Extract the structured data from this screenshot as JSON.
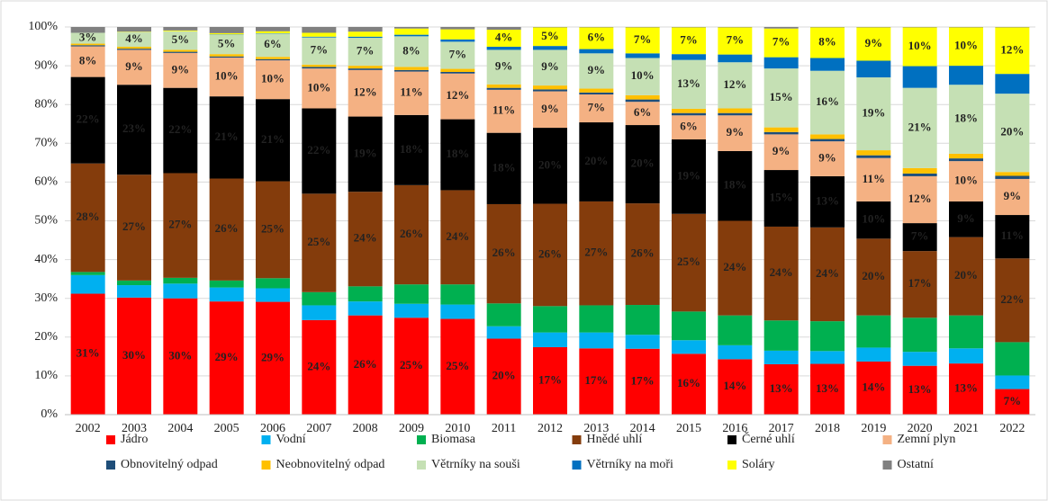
{
  "chart_data": {
    "type": "stacked_bar_100",
    "categories": [
      "2002",
      "2003",
      "2004",
      "2005",
      "2006",
      "2007",
      "2008",
      "2009",
      "2010",
      "2011",
      "2012",
      "2013",
      "2014",
      "2015",
      "2016",
      "2017",
      "2018",
      "2019",
      "2020",
      "2021",
      "2022"
    ],
    "ylim": [
      0,
      100
    ],
    "yticks": [
      {
        "value": 0,
        "label": "0%"
      },
      {
        "value": 10,
        "label": "10%"
      },
      {
        "value": 20,
        "label": "20%"
      },
      {
        "value": 30,
        "label": "30%"
      },
      {
        "value": 40,
        "label": "40%"
      },
      {
        "value": 50,
        "label": "50%"
      },
      {
        "value": 60,
        "label": "60%"
      },
      {
        "value": 70,
        "label": "70%"
      },
      {
        "value": 80,
        "label": "80%"
      },
      {
        "value": 90,
        "label": "90%"
      },
      {
        "value": 100,
        "label": "100%"
      }
    ],
    "grid": true,
    "legend": "bottom",
    "series": [
      {
        "name": "Jádro",
        "color": "#ff0000",
        "values": [
          31.2,
          30.2,
          30.0,
          29.2,
          29.1,
          24.4,
          25.6,
          25.0,
          24.7,
          19.6,
          17.4,
          17.1,
          17.0,
          15.7,
          14.3,
          13.0,
          13.1,
          13.7,
          12.6,
          13.2,
          6.6
        ],
        "value_labels": [
          "31%",
          "30%",
          "30%",
          "29%",
          "29%",
          "24%",
          "26%",
          "25%",
          "25%",
          "20%",
          "17%",
          "17%",
          "17%",
          "16%",
          "14%",
          "13%",
          "13%",
          "14%",
          "13%",
          "13%",
          "7%"
        ]
      },
      {
        "name": "Vodní",
        "color": "#00b0f0",
        "values": [
          4.8,
          3.2,
          3.8,
          3.6,
          3.5,
          3.8,
          3.6,
          3.6,
          3.7,
          3.2,
          3.8,
          4.1,
          3.6,
          3.5,
          3.6,
          3.5,
          3.3,
          3.6,
          3.6,
          3.9,
          3.5
        ]
      },
      {
        "name": "Biomasa",
        "color": "#00b050",
        "values": [
          0.8,
          1.2,
          1.5,
          1.8,
          2.6,
          3.4,
          3.9,
          5.0,
          5.2,
          5.9,
          6.8,
          7.0,
          7.7,
          7.4,
          7.7,
          7.8,
          7.7,
          8.3,
          8.8,
          8.5,
          8.6
        ]
      },
      {
        "name": "Hnědé uhlí",
        "color": "#843c0c",
        "values": [
          28.0,
          27.3,
          27.0,
          26.3,
          25.0,
          25.4,
          24.4,
          25.6,
          24.3,
          25.6,
          26.4,
          26.8,
          26.2,
          25.2,
          24.4,
          24.2,
          24.2,
          19.8,
          17.2,
          20.2,
          21.6
        ],
        "value_labels": [
          "28%",
          "27%",
          "27%",
          "26%",
          "25%",
          "25%",
          "24%",
          "26%",
          "24%",
          "26%",
          "26%",
          "27%",
          "26%",
          "25%",
          "24%",
          "24%",
          "24%",
          "20%",
          "17%",
          "20%",
          "22%"
        ]
      },
      {
        "name": "Černé uhlí",
        "color": "#000000",
        "values": [
          22.3,
          23.2,
          22.0,
          21.2,
          21.2,
          22.0,
          19.4,
          18.1,
          18.3,
          18.4,
          19.6,
          20.4,
          20.2,
          19.2,
          18.0,
          14.6,
          13.2,
          9.6,
          7.2,
          9.2,
          11.2
        ],
        "value_labels": [
          "22%",
          "23%",
          "22%",
          "21%",
          "21%",
          "22%",
          "19%",
          "18%",
          "18%",
          "18%",
          "20%",
          "20%",
          "20%",
          "19%",
          "18%",
          "15%",
          "13%",
          "10%",
          "7%",
          "9%",
          "11%"
        ]
      },
      {
        "name": "Zemní plyn",
        "color": "#f4b183",
        "values": [
          7.9,
          9.0,
          9.0,
          10.0,
          10.0,
          10.3,
          12.0,
          11.2,
          11.8,
          11.1,
          9.4,
          7.2,
          6.0,
          6.2,
          9.2,
          9.2,
          9.0,
          11.2,
          12.1,
          10.4,
          9.3
        ],
        "value_labels": [
          "8%",
          "9%",
          "9%",
          "10%",
          "10%",
          "10%",
          "12%",
          "11%",
          "12%",
          "11%",
          "9%",
          "7%",
          "6%",
          "6%",
          "9%",
          "9%",
          "9%",
          "11%",
          "12%",
          "10%",
          "9%"
        ]
      },
      {
        "name": "Obnovitelný odpad",
        "color": "#1f4e79",
        "values": [
          0.3,
          0.3,
          0.3,
          0.3,
          0.3,
          0.4,
          0.4,
          0.4,
          0.4,
          0.5,
          0.5,
          0.5,
          0.6,
          0.6,
          0.6,
          0.6,
          0.6,
          0.7,
          0.7,
          0.7,
          0.8
        ]
      },
      {
        "name": "Neobnovitelný odpad",
        "color": "#ffc000",
        "values": [
          0.4,
          0.5,
          0.5,
          0.6,
          0.6,
          0.6,
          0.7,
          0.8,
          0.8,
          0.9,
          1.0,
          1.0,
          1.1,
          1.1,
          1.2,
          1.2,
          1.2,
          1.3,
          1.4,
          1.2,
          1.0
        ]
      },
      {
        "name": "Větrníky na souši",
        "color": "#c5e0b4",
        "values": [
          2.8,
          3.8,
          4.8,
          5.0,
          6.0,
          7.0,
          7.2,
          7.9,
          7.0,
          8.9,
          9.2,
          9.1,
          9.6,
          12.6,
          11.9,
          15.2,
          16.4,
          18.8,
          20.7,
          17.8,
          20.2
        ],
        "value_labels": [
          "3%",
          "4%",
          "5%",
          "5%",
          "6%",
          "7%",
          "7%",
          "8%",
          "7%",
          "9%",
          "9%",
          "9%",
          "10%",
          "13%",
          "12%",
          "15%",
          "16%",
          "19%",
          "21%",
          "18%",
          "20%"
        ]
      },
      {
        "name": "Větrníky na moři",
        "color": "#0070c0",
        "values": [
          0,
          0,
          0,
          0.1,
          0.1,
          0.2,
          0.3,
          0.4,
          0.6,
          0.8,
          1.0,
          1.1,
          1.2,
          1.5,
          2.0,
          2.9,
          3.3,
          4.3,
          5.6,
          4.9,
          5.1
        ]
      },
      {
        "name": "Soláry",
        "color": "#ffff00",
        "values": [
          0,
          0.1,
          0.2,
          0.3,
          0.5,
          1.0,
          1.3,
          1.6,
          2.6,
          4.4,
          4.8,
          5.6,
          6.7,
          6.9,
          7.0,
          7.4,
          7.9,
          8.6,
          10.0,
          9.9,
          12.0
        ],
        "value_labels": [
          null,
          null,
          null,
          null,
          null,
          null,
          null,
          null,
          null,
          "4%",
          "5%",
          "6%",
          "7%",
          "7%",
          "7%",
          "7%",
          "8%",
          "9%",
          "10%",
          "10%",
          "12%"
        ]
      },
      {
        "name": "Ostatní",
        "color": "#808080",
        "values": [
          1.5,
          1.2,
          0.9,
          1.6,
          1.1,
          1.5,
          1.2,
          0.4,
          0.6,
          0.7,
          0.1,
          0.1,
          0.1,
          0.1,
          0.1,
          0.4,
          0.1,
          0.1,
          0.1,
          0.1,
          0.1
        ]
      }
    ]
  }
}
